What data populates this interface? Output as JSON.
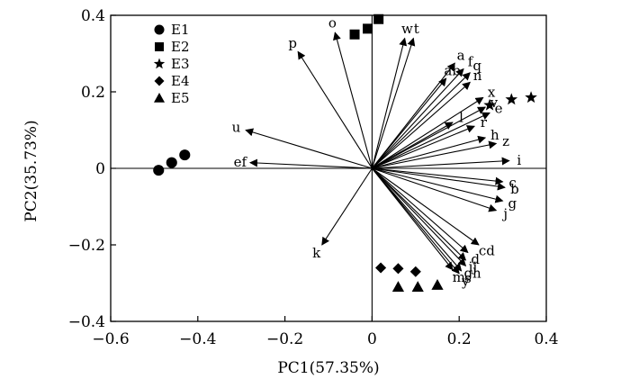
{
  "chart_data": {
    "type": "scatter",
    "subtype": "pca-biplot",
    "title": "",
    "xlabel": "PC1(57.35%)",
    "ylabel": "PC2(35.73%)",
    "xlim": [
      -0.6,
      0.4
    ],
    "ylim": [
      -0.4,
      0.4
    ],
    "xticks": [
      -0.6,
      -0.4,
      -0.2,
      0,
      0.2,
      0.4
    ],
    "yticks": [
      -0.4,
      -0.2,
      0,
      0.2,
      0.4
    ],
    "xtick_labels": [
      "−0.6",
      "−0.4",
      "−0.2",
      "0",
      "0.2",
      "0.4"
    ],
    "ytick_labels": [
      "−0.4",
      "−0.2",
      "0",
      "0.2",
      "0.4"
    ],
    "zero_lines": true,
    "grid": false,
    "legend_position": "top-left",
    "series": [
      {
        "name": "E1",
        "marker": "circle",
        "x": [
          -0.49,
          -0.46,
          -0.43
        ],
        "y": [
          -0.005,
          0.015,
          0.035
        ]
      },
      {
        "name": "E2",
        "marker": "square",
        "x": [
          -0.04,
          -0.01,
          0.015
        ],
        "y": [
          0.35,
          0.365,
          0.39
        ]
      },
      {
        "name": "E3",
        "marker": "star",
        "x": [
          0.27,
          0.32,
          0.365
        ],
        "y": [
          0.165,
          0.18,
          0.185
        ]
      },
      {
        "name": "E4",
        "marker": "diamond",
        "x": [
          0.02,
          0.06,
          0.1
        ],
        "y": [
          -0.26,
          -0.262,
          -0.27
        ]
      },
      {
        "name": "E5",
        "marker": "triangle",
        "x": [
          0.06,
          0.105,
          0.15
        ],
        "y": [
          -0.31,
          -0.31,
          -0.305
        ]
      }
    ],
    "vectors": [
      {
        "label": "o",
        "x": -0.085,
        "y": 0.355
      },
      {
        "label": "p",
        "x": -0.17,
        "y": 0.305
      },
      {
        "label": "w",
        "x": 0.075,
        "y": 0.34
      },
      {
        "label": "t",
        "x": 0.095,
        "y": 0.34
      },
      {
        "label": "a",
        "x": 0.19,
        "y": 0.275
      },
      {
        "label": "f",
        "x": 0.21,
        "y": 0.26
      },
      {
        "label": "q",
        "x": 0.225,
        "y": 0.25
      },
      {
        "label": "ab",
        "x": 0.17,
        "y": 0.235
      },
      {
        "label": "n",
        "x": 0.225,
        "y": 0.225
      },
      {
        "label": "x",
        "x": 0.255,
        "y": 0.185
      },
      {
        "label": "l",
        "x": 0.185,
        "y": 0.12
      },
      {
        "label": "v",
        "x": 0.26,
        "y": 0.16
      },
      {
        "label": "e",
        "x": 0.27,
        "y": 0.145
      },
      {
        "label": "r",
        "x": 0.235,
        "y": 0.11
      },
      {
        "label": "h",
        "x": 0.26,
        "y": 0.08
      },
      {
        "label": "z",
        "x": 0.285,
        "y": 0.065
      },
      {
        "label": "i",
        "x": 0.315,
        "y": 0.02
      },
      {
        "label": "c",
        "x": 0.3,
        "y": -0.035
      },
      {
        "label": "b",
        "x": 0.305,
        "y": -0.05
      },
      {
        "label": "g",
        "x": 0.3,
        "y": -0.085
      },
      {
        "label": "j",
        "x": 0.285,
        "y": -0.11
      },
      {
        "label": "cd",
        "x": 0.245,
        "y": -0.2
      },
      {
        "label": "d",
        "x": 0.22,
        "y": -0.22
      },
      {
        "label": "ij",
        "x": 0.215,
        "y": -0.24
      },
      {
        "label": "m",
        "x": 0.185,
        "y": -0.265
      },
      {
        "label": "y",
        "x": 0.2,
        "y": -0.275
      },
      {
        "label": "s",
        "x": 0.205,
        "y": -0.268
      },
      {
        "label": "gh",
        "x": 0.215,
        "y": -0.255
      },
      {
        "label": "u",
        "x": -0.29,
        "y": 0.1
      },
      {
        "label": "ef",
        "x": -0.28,
        "y": 0.015
      },
      {
        "label": "k",
        "x": -0.115,
        "y": -0.2
      }
    ],
    "colors": {
      "ink": "#000000",
      "background": "#ffffff"
    }
  }
}
